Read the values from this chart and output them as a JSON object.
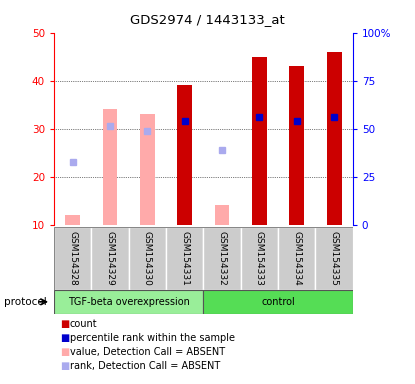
{
  "title": "GDS2974 / 1443133_at",
  "samples": [
    "GSM154328",
    "GSM154329",
    "GSM154330",
    "GSM154331",
    "GSM154332",
    "GSM154333",
    "GSM154334",
    "GSM154335"
  ],
  "bar_values_present": [
    null,
    null,
    null,
    39,
    null,
    45,
    43,
    46
  ],
  "bar_color_present": "#cc0000",
  "bar_values_absent": [
    12,
    34,
    33,
    null,
    14,
    null,
    null,
    null
  ],
  "bar_color_absent": "#ffaaaa",
  "rank_values_present": [
    null,
    null,
    null,
    31.5,
    null,
    32.5,
    31.5,
    32.5
  ],
  "rank_color_present": "#0000cc",
  "rank_values_absent": [
    23,
    30.5,
    29.5,
    null,
    25.5,
    null,
    null,
    null
  ],
  "rank_color_absent": "#aaaaee",
  "ylim_left": [
    10,
    50
  ],
  "ylim_right": [
    0,
    100
  ],
  "left_ticks": [
    10,
    20,
    30,
    40,
    50
  ],
  "right_ticks": [
    0,
    25,
    50,
    75,
    100
  ],
  "right_tick_labels": [
    "0",
    "25",
    "50",
    "75",
    "100%"
  ],
  "group1_label": "TGF-beta overexpression",
  "group2_label": "control",
  "group1_color": "#99ee99",
  "group2_color": "#55dd55",
  "group1_indices": [
    0,
    1,
    2,
    3
  ],
  "group2_indices": [
    4,
    5,
    6,
    7
  ],
  "title_text": "GDS2974 / 1443133_at",
  "protocol_label": "protocol",
  "legend_items": [
    {
      "color": "#cc0000",
      "label": "count"
    },
    {
      "color": "#0000cc",
      "label": "percentile rank within the sample"
    },
    {
      "color": "#ffaaaa",
      "label": "value, Detection Call = ABSENT"
    },
    {
      "color": "#aaaaee",
      "label": "rank, Detection Call = ABSENT"
    }
  ],
  "bar_width": 0.4,
  "sample_box_color": "#cccccc",
  "grid_color": "black",
  "grid_style": "dotted",
  "grid_lines": [
    20,
    30,
    40
  ]
}
